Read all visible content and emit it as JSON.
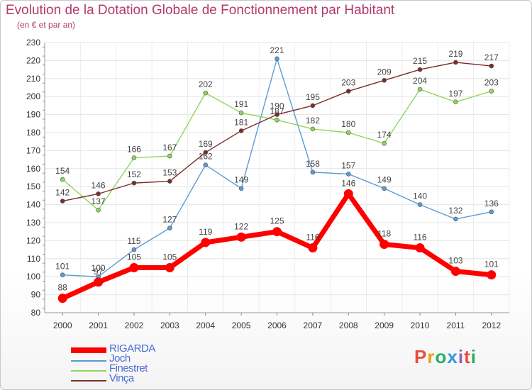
{
  "title": "Evolution de la Dotation Globale de Fonctionnement par Habitant",
  "subtitle": "(en € et par an)",
  "logo": {
    "text": "Proxiti",
    "colors": [
      "#e84c3d",
      "#f39c12",
      "#27ae60",
      "#3498db",
      "#9b59b6",
      "#e84c3d",
      "#27ae60"
    ]
  },
  "chart_data": {
    "type": "line",
    "x": [
      "2000",
      "2001",
      "2002",
      "2003",
      "2004",
      "2005",
      "2006",
      "2007",
      "2008",
      "2009",
      "2010",
      "2011",
      "2012"
    ],
    "ylim": [
      80,
      230
    ],
    "yticks": [
      80,
      90,
      100,
      110,
      120,
      130,
      140,
      150,
      160,
      170,
      180,
      190,
      200,
      210,
      220,
      230
    ],
    "grid": true,
    "legend_position": "bottom-left",
    "series": [
      {
        "name": "Joch",
        "color": "#5b9bd5",
        "values": [
          101,
          100,
          115,
          127,
          162,
          149,
          221,
          158,
          157,
          149,
          140,
          132,
          136
        ]
      },
      {
        "name": "Finestret",
        "color": "#8fd65a",
        "values": [
          154,
          137,
          166,
          167,
          202,
          191,
          187,
          182,
          180,
          174,
          204,
          197,
          203
        ]
      },
      {
        "name": "Vinça",
        "color": "#7b2c2c",
        "values": [
          142,
          146,
          152,
          153,
          169,
          181,
          190,
          195,
          203,
          209,
          215,
          219,
          217
        ]
      },
      {
        "name": "RIGARDA",
        "color": "#ff0000",
        "values": [
          88,
          97,
          105,
          105,
          119,
          122,
          125,
          116,
          146,
          118,
          116,
          103,
          101
        ]
      }
    ]
  }
}
